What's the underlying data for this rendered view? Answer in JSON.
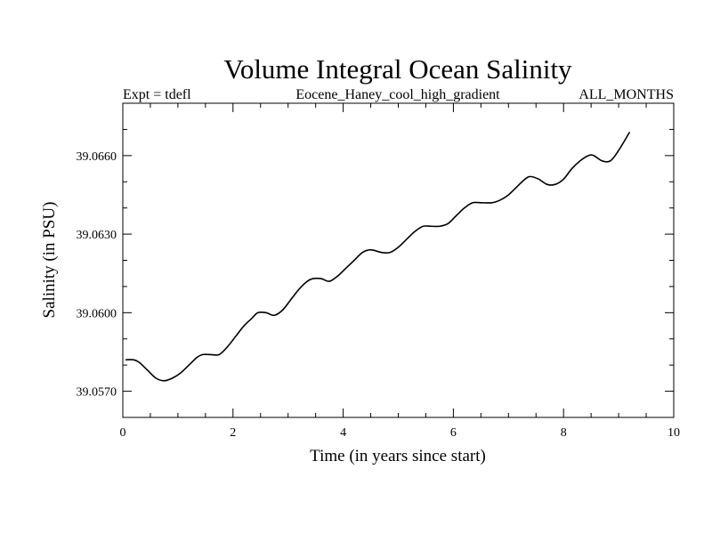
{
  "chart_data": {
    "type": "line",
    "title": "Volume Integral Ocean Salinity",
    "subtitle_left": "Expt = tdefl",
    "subtitle_center": "Eocene_Haney_cool_high_gradient",
    "subtitle_right": "ALL_MONTHS",
    "xlabel": "Time (in years since start)",
    "ylabel": "Salinity (in PSU)",
    "xlim": [
      0,
      10
    ],
    "ylim": [
      39.056,
      39.068
    ],
    "xticks": [
      0,
      2,
      4,
      6,
      8,
      10
    ],
    "xtick_labels": [
      "0",
      "2",
      "4",
      "6",
      "8",
      "10"
    ],
    "yticks": [
      39.057,
      39.06,
      39.063,
      39.066
    ],
    "ytick_labels": [
      "39.0570",
      "39.0600",
      "39.0630",
      "39.0660"
    ],
    "grid": false,
    "color": "#000000",
    "series": [
      {
        "x": [
          0.05,
          0.2,
          0.3,
          0.45,
          0.6,
          0.75,
          0.9,
          1.05,
          1.2,
          1.35,
          1.45,
          1.6,
          1.75,
          1.9,
          2.05,
          2.2,
          2.35,
          2.45,
          2.6,
          2.75,
          2.9,
          3.05,
          3.2,
          3.35,
          3.45,
          3.6,
          3.75,
          3.9,
          4.05,
          4.2,
          4.35,
          4.5,
          4.7,
          4.85,
          5.0,
          5.15,
          5.3,
          5.45,
          5.6,
          5.75,
          5.9,
          6.05,
          6.2,
          6.35,
          6.5,
          6.7,
          6.85,
          7.0,
          7.15,
          7.3,
          7.4,
          7.55,
          7.7,
          7.85,
          8.0,
          8.15,
          8.3,
          8.45,
          8.55,
          8.7,
          8.85,
          9.0,
          9.2
        ],
        "y": [
          39.0582,
          39.0582,
          39.0581,
          39.0578,
          39.0575,
          39.0574,
          39.0575,
          39.0577,
          39.058,
          39.0583,
          39.0584,
          39.0584,
          39.0584,
          39.0587,
          39.0591,
          39.0595,
          39.0598,
          39.06,
          39.06,
          39.0599,
          39.0601,
          39.0605,
          39.0609,
          39.0612,
          39.0613,
          39.0613,
          39.0612,
          39.0614,
          39.0617,
          39.062,
          39.0623,
          39.0624,
          39.0623,
          39.0623,
          39.0625,
          39.0628,
          39.0631,
          39.0633,
          39.0633,
          39.0633,
          39.0634,
          39.0637,
          39.064,
          39.0642,
          39.0642,
          39.0642,
          39.0643,
          39.0645,
          39.0648,
          39.0651,
          39.0652,
          39.0651,
          39.0649,
          39.0649,
          39.0651,
          39.0655,
          39.0658,
          39.066,
          39.066,
          39.0658,
          39.0658,
          39.0662,
          39.0669
        ]
      }
    ]
  }
}
